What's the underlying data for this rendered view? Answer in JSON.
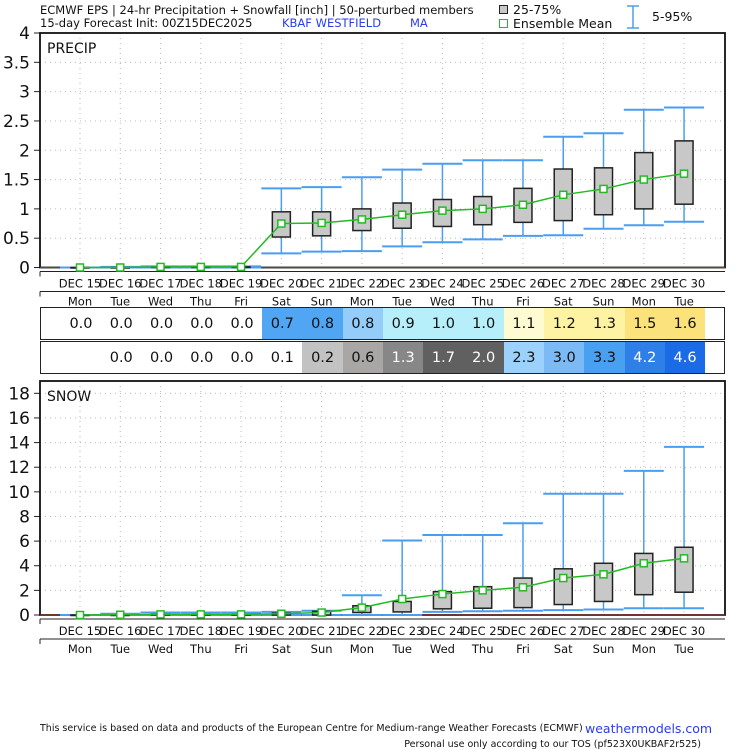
{
  "header": {
    "line1": "ECMWF EPS | 24-hr Precipitation + Snowfall [inch] | 50-perturbed members",
    "line2": "15-day Forecast Init: 00Z15DEC2025",
    "station": "KBAF  WESTFIELD",
    "state": "MA"
  },
  "legend": {
    "box_label": "25-75%",
    "mean_label": "Ensemble Mean",
    "whisker_label": "5-95%",
    "box_color": "#c8c8c8",
    "mean_color": "#22bb22",
    "whisker_color": "#4a9ef0"
  },
  "chart_data": [
    {
      "type": "box",
      "title": "PRECIP",
      "categories": [
        "DEC 15",
        "DEC 16",
        "DEC 17",
        "DEC 18",
        "DEC 19",
        "DEC 20",
        "DEC 21",
        "DEC 22",
        "DEC 23",
        "DEC 24",
        "DEC 25",
        "DEC 26",
        "DEC 27",
        "DEC 28",
        "DEC 29",
        "DEC 30"
      ],
      "day_labels": [
        "Mon",
        "Tue",
        "Wed",
        "Thu",
        "Fri",
        "Sat",
        "Sun",
        "Mon",
        "Tue",
        "Wed",
        "Thu",
        "Fri",
        "Sat",
        "Sun",
        "Mon",
        "Tue"
      ],
      "ylim": [
        0,
        4
      ],
      "yticks": [
        "0",
        "0.5",
        "1",
        "1.5",
        "2",
        "2.5",
        "3",
        "3.5",
        "4"
      ],
      "grid": true,
      "mean": [
        0,
        0,
        0.01,
        0.01,
        0.01,
        0.75,
        0.76,
        0.82,
        0.9,
        0.97,
        1.0,
        1.07,
        1.24,
        1.34,
        1.5,
        1.6
      ],
      "p25": [
        0,
        0,
        0,
        0,
        0,
        0.52,
        0.54,
        0.63,
        0.67,
        0.7,
        0.73,
        0.77,
        0.8,
        0.9,
        1.0,
        1.08
      ],
      "p75": [
        0,
        0,
        0.01,
        0.01,
        0.01,
        0.95,
        0.95,
        1.0,
        1.1,
        1.16,
        1.21,
        1.35,
        1.68,
        1.7,
        1.96,
        2.16
      ],
      "p5": [
        0,
        0,
        0,
        0,
        0,
        0.24,
        0.27,
        0.28,
        0.36,
        0.43,
        0.48,
        0.54,
        0.55,
        0.66,
        0.72,
        0.78
      ],
      "p95": [
        0,
        0.01,
        0.02,
        0.02,
        0.02,
        1.35,
        1.37,
        1.54,
        1.67,
        1.77,
        1.83,
        1.83,
        2.23,
        2.29,
        2.69,
        2.73
      ]
    },
    {
      "type": "box",
      "title": "SNOW",
      "categories": [
        "DEC 15",
        "DEC 16",
        "DEC 17",
        "DEC 18",
        "DEC 19",
        "DEC 20",
        "DEC 21",
        "DEC 22",
        "DEC 23",
        "DEC 24",
        "DEC 25",
        "DEC 26",
        "DEC 27",
        "DEC 28",
        "DEC 29",
        "DEC 30"
      ],
      "day_labels": [
        "Mon",
        "Tue",
        "Wed",
        "Thu",
        "Fri",
        "Sat",
        "Sun",
        "Mon",
        "Tue",
        "Wed",
        "Thu",
        "Fri",
        "Sat",
        "Sun",
        "Mon",
        "Tue"
      ],
      "ylim": [
        0,
        19
      ],
      "yticks": [
        "0",
        "2",
        "4",
        "6",
        "8",
        "10",
        "12",
        "14",
        "16",
        "18"
      ],
      "grid": true,
      "mean": [
        0,
        0.02,
        0.05,
        0.05,
        0.05,
        0.1,
        0.2,
        0.6,
        1.3,
        1.7,
        2.0,
        2.25,
        3.0,
        3.3,
        4.2,
        4.6
      ],
      "p25": [
        0,
        0,
        0,
        0,
        0,
        0,
        0,
        0.2,
        0.25,
        0.5,
        0.55,
        0.6,
        0.85,
        1.1,
        1.65,
        1.85
      ],
      "p75": [
        0,
        0,
        0.05,
        0.05,
        0.05,
        0.15,
        0.3,
        0.75,
        1.1,
        1.9,
        2.3,
        3.0,
        3.75,
        4.2,
        5.0,
        5.5
      ],
      "p5": [
        0,
        0,
        0,
        0,
        0,
        0,
        0,
        0,
        0,
        0.25,
        0.3,
        0.35,
        0.4,
        0.45,
        0.55,
        0.55
      ],
      "p95": [
        0,
        0.1,
        0.2,
        0.2,
        0.2,
        0.25,
        0.35,
        1.6,
        6.05,
        6.5,
        6.5,
        7.45,
        9.85,
        9.85,
        11.7,
        13.65
      ]
    }
  ],
  "table": {
    "precip_row": {
      "values": [
        "0.0",
        "0.0",
        "0.0",
        "0.0",
        "0.0",
        "0.7",
        "0.8",
        "0.8",
        "0.9",
        "1.0",
        "1.0",
        "1.1",
        "1.2",
        "1.3",
        "1.5",
        "1.6"
      ],
      "colors": [
        "#ffffff",
        "#ffffff",
        "#ffffff",
        "#ffffff",
        "#ffffff",
        "#50a6f2",
        "#50a6f2",
        "#94cdf9",
        "#b6eef9",
        "#b6eef9",
        "#b6eef9",
        "#fefbd2",
        "#fdf3a2",
        "#fdf3a2",
        "#fbe27a",
        "#fbe27a"
      ]
    },
    "snow_row": {
      "values": [
        "",
        "0.0",
        "0.0",
        "0.0",
        "0.0",
        "0.1",
        "0.2",
        "0.6",
        "1.3",
        "1.7",
        "2.0",
        "2.3",
        "3.0",
        "3.3",
        "4.2",
        "4.6"
      ],
      "colors": [
        "#ffffff",
        "#ffffff",
        "#ffffff",
        "#ffffff",
        "#ffffff",
        "#ffffff",
        "#c2c2c2",
        "#a9a6a6",
        "#878787",
        "#606060",
        "#606060",
        "#9bd1fb",
        "#7cbaf6",
        "#4aa0f0",
        "#2f7fe8",
        "#1c6be6"
      ],
      "text_colors": [
        "#111",
        "#111",
        "#111",
        "#111",
        "#111",
        "#111",
        "#111",
        "#111",
        "#fff",
        "#fff",
        "#fff",
        "#111",
        "#111",
        "#111",
        "#fff",
        "#fff"
      ]
    }
  },
  "footer": {
    "disclaimer": "This service is based on data and products of the European Centre for Medium-range Weather Forecasts (ECMWF)",
    "site": "weathermodels.com",
    "tos": "Personal use only according to our TOS (pf523X0UKBAF2r525)"
  }
}
